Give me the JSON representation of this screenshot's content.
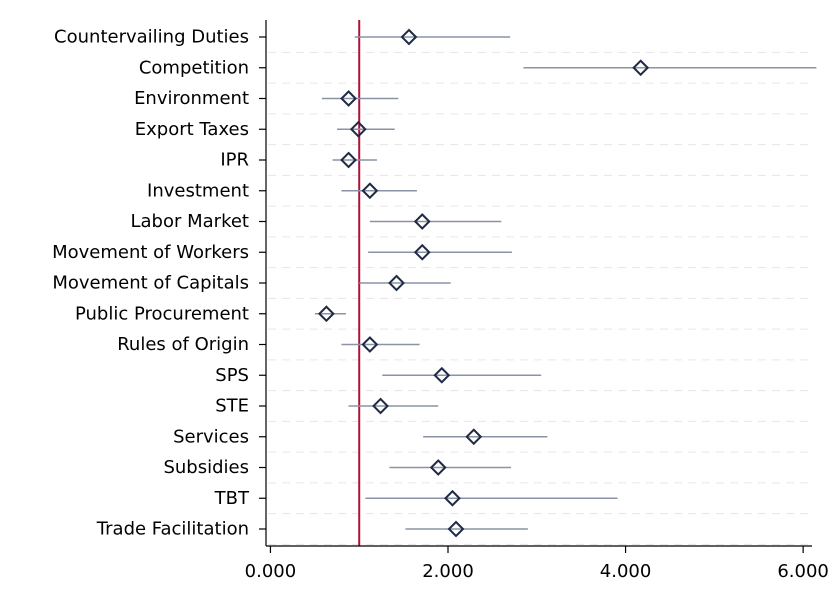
{
  "chart_data": {
    "type": "scatter",
    "orientation": "horizontal",
    "categories": [
      "Countervailing Duties",
      "Competition",
      "Environment",
      "Export Taxes",
      "IPR",
      "Investment",
      "Labor Market",
      "Movement of Workers",
      "Movement of Capitals",
      "Public Procurement",
      "Rules of Origin",
      "SPS",
      "STE",
      "Services",
      "Subsidies",
      "TBT",
      "Trade Facilitation"
    ],
    "series": [
      {
        "estimates": [
          1.56,
          4.17,
          0.88,
          0.99,
          0.88,
          1.12,
          1.71,
          1.71,
          1.42,
          0.63,
          1.12,
          1.93,
          1.24,
          2.29,
          1.89,
          2.05,
          2.09
        ],
        "ci_low": [
          0.95,
          2.85,
          0.58,
          0.75,
          0.7,
          0.8,
          1.12,
          1.1,
          1.0,
          0.5,
          0.8,
          1.26,
          0.88,
          1.72,
          1.34,
          1.07,
          1.52
        ],
        "ci_high": [
          2.7,
          6.15,
          1.44,
          1.4,
          1.2,
          1.65,
          2.6,
          2.72,
          2.03,
          0.85,
          1.68,
          3.05,
          1.89,
          3.12,
          2.71,
          3.91,
          2.9
        ]
      }
    ],
    "reference_line": {
      "x": 1.0,
      "color": "#b0103a"
    },
    "x_ticks": [
      "0.000",
      "2.000",
      "4.000",
      "6.000"
    ],
    "x_tick_values": [
      0,
      2,
      4,
      6
    ],
    "xlim": [
      -0.05,
      6.1
    ],
    "title": "",
    "xlabel": "",
    "ylabel": "",
    "grid": true,
    "colors": {
      "ci": "#8a93a6",
      "marker": "#1f2a44",
      "grid": "#e6e6e6",
      "axis": "#000000"
    }
  }
}
